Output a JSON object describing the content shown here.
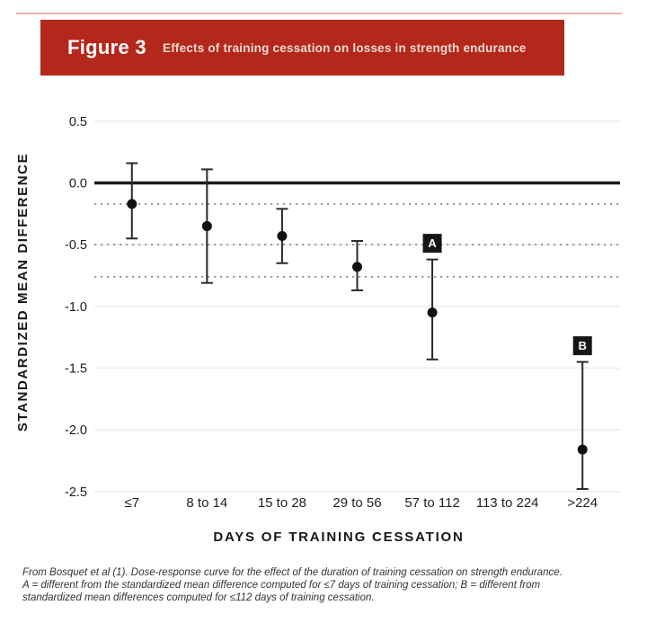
{
  "header": {
    "figure_label": "Figure 3",
    "title": "Effects of training cessation on losses in strength endurance",
    "bar_color": "#b3281a",
    "accent_line_color": "#eab4aa"
  },
  "chart_data": {
    "type": "scatter",
    "subtype": "point-estimates-with-95CI-error-bars",
    "xlabel": "DAYS OF TRAINING CESSATION",
    "ylabel": "STANDARDIZED MEAN DIFFERENCE",
    "categories": [
      "≤7",
      "8 to 14",
      "15 to 28",
      "29 to 56",
      "57 to 112",
      "113 to 224",
      ">224"
    ],
    "points": [
      {
        "category": "≤7",
        "smd": -0.17,
        "ci_high": 0.16,
        "ci_low": -0.45,
        "marker": null
      },
      {
        "category": "8 to 14",
        "smd": -0.35,
        "ci_high": 0.11,
        "ci_low": -0.81,
        "marker": null
      },
      {
        "category": "15 to 28",
        "smd": -0.43,
        "ci_high": -0.21,
        "ci_low": -0.65,
        "marker": null
      },
      {
        "category": "29 to 56",
        "smd": -0.68,
        "ci_high": -0.47,
        "ci_low": -0.87,
        "marker": null
      },
      {
        "category": "57 to 112",
        "smd": -1.05,
        "ci_high": -0.62,
        "ci_low": -1.43,
        "marker": "A"
      },
      {
        "category": "113 to 224",
        "smd": null,
        "ci_high": null,
        "ci_low": null,
        "marker": null
      },
      {
        "category": ">224",
        "smd": -2.16,
        "ci_high": -1.45,
        "ci_low": -2.48,
        "marker": "B"
      }
    ],
    "yticks": [
      0.5,
      0.0,
      -0.5,
      -1.0,
      -1.5,
      -2.0,
      -2.5
    ],
    "ylim": [
      -2.55,
      0.62
    ],
    "zero_line_value": 0.0,
    "dotted_reference_lines": [
      -0.17,
      -0.5,
      -0.76
    ],
    "grid": "faint horizontal lines at y ticks, no vertical axis line, legend off",
    "colors": {
      "point": "#111111",
      "error_bar": "#2a2a2a",
      "zero_line": "#1a1a1a",
      "gridline": "#ededed",
      "dotted_line": "#8f8f8f",
      "marker_box_bg": "#161616",
      "marker_box_text": "#ffffff",
      "tick_label": "#1c1c1c"
    }
  },
  "footer": {
    "lines": [
      "From Bosquet et al (1). Dose-response curve for the effect of the duration of training cessation on strength endurance.",
      "A = different from the standardized mean difference computed for ≤7 days of training cessation; B = different from",
      "standardized mean differences computed for ≤112 days of training cessation."
    ]
  }
}
